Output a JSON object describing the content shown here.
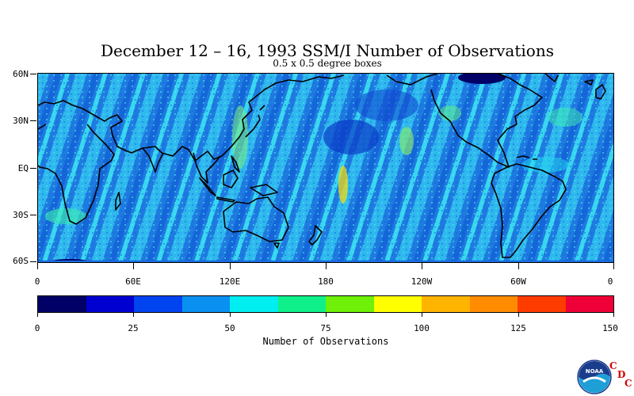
{
  "title": "December 12 – 16, 1993 SSM/I Number of Observations",
  "subtitle": "0.5 x 0.5 degree boxes",
  "map": {
    "lat_labels": [
      "60N",
      "30N",
      "EQ",
      "30S",
      "60S"
    ],
    "lon_labels": [
      "0",
      "60E",
      "120E",
      "180",
      "120W",
      "60W",
      "0"
    ],
    "land_color": "#2a6fe0",
    "ocean_color": "#2a8de0"
  },
  "colorbar": {
    "title": "Number of Observations",
    "tick_labels": [
      "0",
      "25",
      "50",
      "75",
      "100",
      "125",
      "150"
    ],
    "colors": [
      "#000066",
      "#0000d0",
      "#0044f0",
      "#0a90f0",
      "#00eef0",
      "#10f08a",
      "#6ef008",
      "#ffff00",
      "#ffb400",
      "#ff8c00",
      "#ff3c00",
      "#f00038"
    ]
  },
  "logo": {
    "emblem_text": "NOAA",
    "letters": [
      "C",
      "D",
      "C"
    ]
  }
}
